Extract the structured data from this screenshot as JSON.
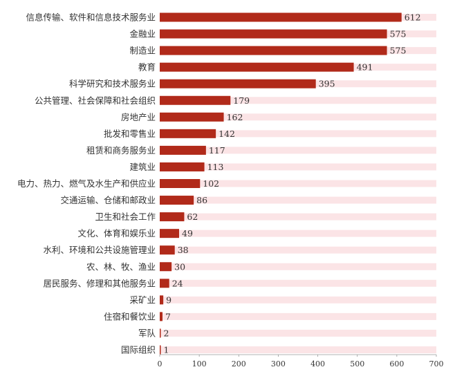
{
  "chart_data": {
    "type": "bar",
    "orientation": "horizontal",
    "title": "",
    "xlabel": "",
    "ylabel": "",
    "xlim": [
      0,
      700
    ],
    "xticks": [
      0,
      100,
      200,
      300,
      400,
      500,
      600,
      700
    ],
    "grid": false,
    "legend": "none",
    "categories": [
      "信息传输、软件和信息技术服务业",
      "金融业",
      "制造业",
      "教育",
      "科学研究和技术服务业",
      "公共管理、社会保障和社会组织",
      "房地产业",
      "批发和零售业",
      "租赁和商务服务业",
      "建筑业",
      "电力、热力、燃气及水生产和供应业",
      "交通运输、仓储和邮政业",
      "卫生和社会工作",
      "文化、体育和娱乐业",
      "水利、环境和公共设施管理业",
      "农、林、牧、渔业",
      "居民服务、修理和其他服务业",
      "采矿业",
      "住宿和餐饮业",
      "军队",
      "国际组织"
    ],
    "values": [
      612,
      575,
      575,
      491,
      395,
      179,
      162,
      142,
      117,
      113,
      102,
      86,
      62,
      49,
      38,
      30,
      24,
      9,
      7,
      2,
      1
    ],
    "colors": {
      "bar": "#b12a1a",
      "track": "#fbe4e6",
      "text": "#333333",
      "axis": "#999999"
    }
  }
}
